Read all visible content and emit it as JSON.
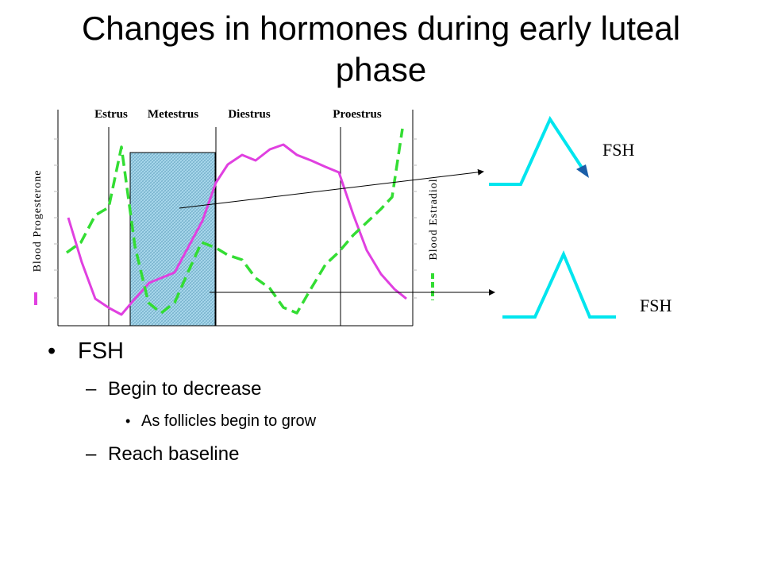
{
  "slide": {
    "title": "Changes in hormones during early luteal phase",
    "bullets": {
      "level1": "FSH",
      "level2_a": "Begin to decrease",
      "level3_a": "As follicles begin to grow",
      "level2_b": "Reach baseline",
      "dash": "–"
    }
  },
  "diagram": {
    "phases": [
      "Estrus",
      "Metestrus",
      "Diestrus",
      "Proestrus"
    ],
    "y_left_label": "Blood Progesterone",
    "y_right_label": "Blood Estradiol",
    "progesterone_color": "#e040e0",
    "estradiol_color": "#33dd33",
    "fsh_color": "#00e5ee",
    "fsh_label_top": "FSH",
    "fsh_label_bottom": "FSH"
  }
}
